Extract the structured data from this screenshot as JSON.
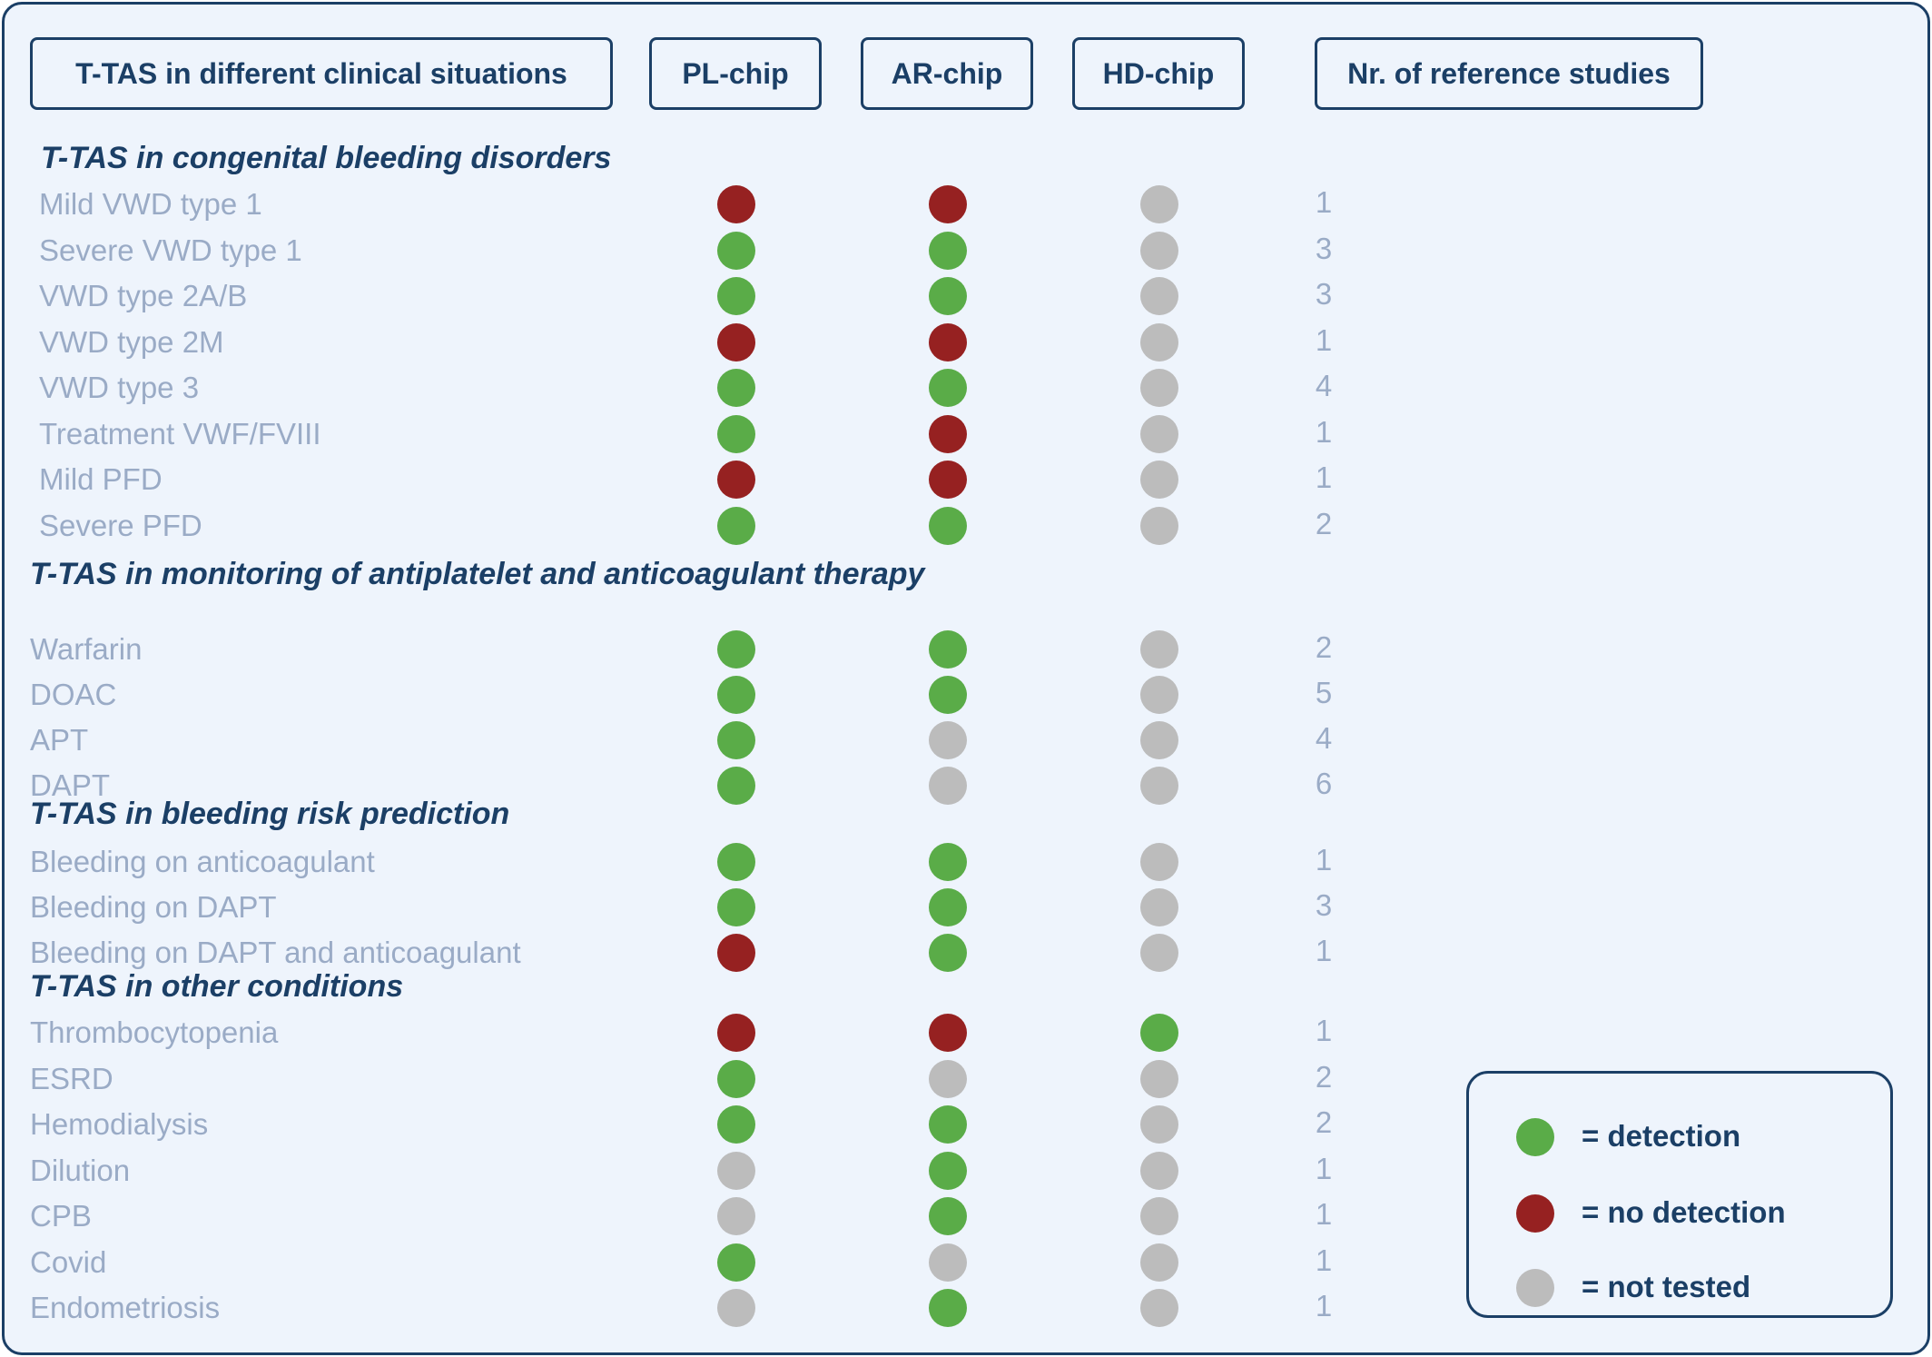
{
  "header": {
    "situations": "T-TAS in different clinical situations",
    "pl_chip": "PL-chip",
    "ar_chip": "AR-chip",
    "hd_chip": "HD-chip",
    "reference_studies": "Nr. of reference studies"
  },
  "colors": {
    "detection": "#5aac48",
    "no_detection": "#962121",
    "not_tested": "#bcbcbc",
    "navy": "#1b3f66",
    "label_gray": "#9aabc6"
  },
  "sections": [
    {
      "title": "T-TAS in congenital bleeding disorders",
      "rows": [
        {
          "label": "Mild VWD type 1",
          "pl": "no_detection",
          "ar": "no_detection",
          "hd": "not_tested",
          "refs": "1"
        },
        {
          "label": "Severe VWD type 1",
          "pl": "detection",
          "ar": "detection",
          "hd": "not_tested",
          "refs": "3"
        },
        {
          "label": "VWD type 2A/B",
          "pl": "detection",
          "ar": "detection",
          "hd": "not_tested",
          "refs": "3"
        },
        {
          "label": "VWD type 2M",
          "pl": "no_detection",
          "ar": "no_detection",
          "hd": "not_tested",
          "refs": "1"
        },
        {
          "label": "VWD type 3",
          "pl": "detection",
          "ar": "detection",
          "hd": "not_tested",
          "refs": "4"
        },
        {
          "label": "Treatment VWF/FVIII",
          "pl": "detection",
          "ar": "no_detection",
          "hd": "not_tested",
          "refs": "1"
        },
        {
          "label": "Mild PFD",
          "pl": "no_detection",
          "ar": "no_detection",
          "hd": "not_tested",
          "refs": "1"
        },
        {
          "label": "Severe PFD",
          "pl": "detection",
          "ar": "detection",
          "hd": "not_tested",
          "refs": "2"
        }
      ]
    },
    {
      "title": "T-TAS in monitoring of antiplatelet and anticoagulant therapy",
      "rows": [
        {
          "label": "Warfarin",
          "pl": "detection",
          "ar": "detection",
          "hd": "not_tested",
          "refs": "2"
        },
        {
          "label": "DOAC",
          "pl": "detection",
          "ar": "detection",
          "hd": "not_tested",
          "refs": "5"
        },
        {
          "label": "APT",
          "pl": "detection",
          "ar": "not_tested",
          "hd": "not_tested",
          "refs": "4"
        },
        {
          "label": "DAPT",
          "pl": "detection",
          "ar": "not_tested",
          "hd": "not_tested",
          "refs": "6"
        }
      ]
    },
    {
      "title": "T-TAS in bleeding risk prediction",
      "rows": [
        {
          "label": "Bleeding on anticoagulant",
          "pl": "detection",
          "ar": "detection",
          "hd": "not_tested",
          "refs": "1"
        },
        {
          "label": "Bleeding on DAPT",
          "pl": "detection",
          "ar": "detection",
          "hd": "not_tested",
          "refs": "3"
        },
        {
          "label": "Bleeding on DAPT and anticoagulant",
          "pl": "no_detection",
          "ar": "detection",
          "hd": "not_tested",
          "refs": "1"
        }
      ]
    },
    {
      "title": "T-TAS in other conditions",
      "rows": [
        {
          "label": "Thrombocytopenia",
          "pl": "no_detection",
          "ar": "no_detection",
          "hd": "detection",
          "refs": "1"
        },
        {
          "label": "ESRD",
          "pl": "detection",
          "ar": "not_tested",
          "hd": "not_tested",
          "refs": "2"
        },
        {
          "label": "Hemodialysis",
          "pl": "detection",
          "ar": "detection",
          "hd": "not_tested",
          "refs": "2"
        },
        {
          "label": "Dilution",
          "pl": "not_tested",
          "ar": "detection",
          "hd": "not_tested",
          "refs": "1"
        },
        {
          "label": "CPB",
          "pl": "not_tested",
          "ar": "detection",
          "hd": "not_tested",
          "refs": "1"
        },
        {
          "label": "Covid",
          "pl": "detection",
          "ar": "not_tested",
          "hd": "not_tested",
          "refs": "1"
        },
        {
          "label": "Endometriosis",
          "pl": "not_tested",
          "ar": "detection",
          "hd": "not_tested",
          "refs": "1"
        }
      ]
    }
  ],
  "legend": {
    "detection": "= detection",
    "no_detection": "= no detection",
    "not_tested": "= not tested"
  }
}
